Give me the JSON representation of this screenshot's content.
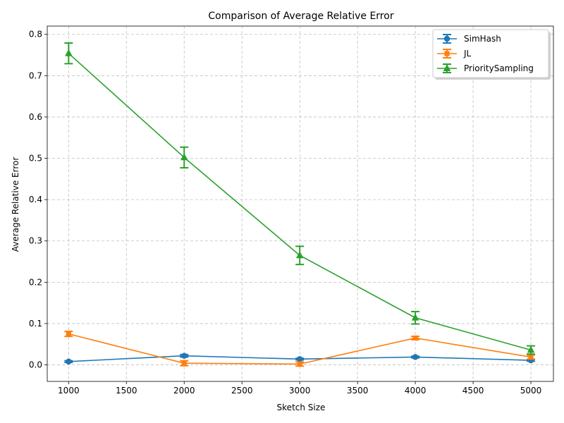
{
  "chart_data": {
    "type": "line",
    "title": "Comparison of Average Relative Error",
    "xlabel": "Sketch Size",
    "ylabel": "Average Relative Error",
    "x": [
      1000,
      2000,
      3000,
      4000,
      5000
    ],
    "xlim": [
      815,
      5195
    ],
    "ylim": [
      -0.04,
      0.82
    ],
    "xticks": [
      1000,
      1500,
      2000,
      2500,
      3000,
      3500,
      4000,
      4500,
      5000
    ],
    "yticks": [
      0.0,
      0.1,
      0.2,
      0.3,
      0.4,
      0.5,
      0.6,
      0.7,
      0.8
    ],
    "ytick_labels": [
      "0.0",
      "0.1",
      "0.2",
      "0.3",
      "0.4",
      "0.5",
      "0.6",
      "0.7",
      "0.8"
    ],
    "grid": true,
    "legend_position": "top-right",
    "series": [
      {
        "name": "SimHash",
        "color": "#1f77b4",
        "marker": "circle",
        "values": [
          0.008,
          0.022,
          0.014,
          0.019,
          0.011
        ],
        "errors": [
          0.002,
          0.003,
          0.002,
          0.002,
          0.002
        ]
      },
      {
        "name": "JL",
        "color": "#ff7f0e",
        "marker": "square",
        "values": [
          0.075,
          0.004,
          0.002,
          0.065,
          0.019
        ],
        "errors": [
          0.006,
          0.006,
          0.005,
          0.004,
          0.005
        ]
      },
      {
        "name": "PrioritySampling",
        "color": "#2ca02c",
        "marker": "triangle",
        "values": [
          0.754,
          0.502,
          0.265,
          0.114,
          0.036
        ],
        "errors": [
          0.025,
          0.025,
          0.022,
          0.015,
          0.01
        ]
      }
    ]
  }
}
